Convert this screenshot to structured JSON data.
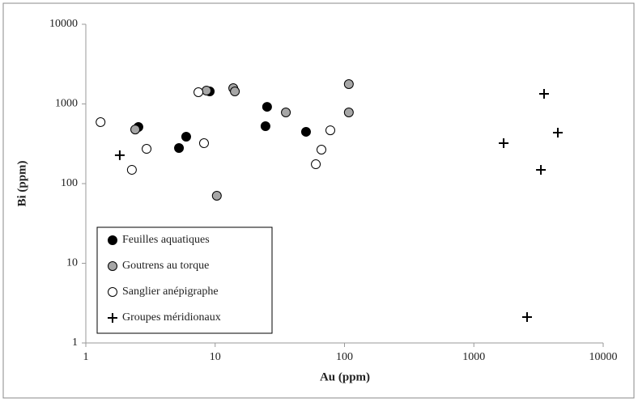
{
  "chart_data": {
    "type": "scatter",
    "xlabel": "Au (ppm)",
    "ylabel": "Bi (ppm)",
    "xscale": "log",
    "yscale": "log",
    "xlim": [
      1,
      10000
    ],
    "ylim": [
      1,
      10000
    ],
    "xticks": [
      1,
      10,
      100,
      1000,
      10000
    ],
    "yticks": [
      1,
      10,
      100,
      1000,
      10000
    ],
    "grid": false,
    "legend": "lower left",
    "series": [
      {
        "name": "Feuilles aquatiques",
        "marker": "circle",
        "color": "#000000",
        "x": [
          2.55,
          5.25,
          5.97,
          9.08,
          25.2,
          24.5,
          50.4
        ],
        "values": [
          513,
          280,
          388,
          1437,
          920,
          526,
          447
        ]
      },
      {
        "name": "Goutrens au torque",
        "marker": "circle",
        "color": "#a6a6a6",
        "x": [
          2.41,
          8.57,
          13.8,
          14.2,
          10.3,
          35.2,
          108,
          108
        ],
        "values": [
          478,
          1470,
          1578,
          1437,
          70.4,
          782,
          1773,
          782
        ]
      },
      {
        "name": "Sanglier anépigraphe",
        "marker": "circle",
        "color": "#ffffff",
        "x": [
          1.3,
          2.27,
          2.95,
          7.42,
          8.2,
          60,
          66.3,
          77.7
        ],
        "values": [
          591,
          149,
          273,
          1403,
          322,
          175,
          267,
          467
        ]
      },
      {
        "name": "Groupes méridionaux",
        "marker": "plus",
        "color": "#000000",
        "x": [
          1.83,
          1700,
          3490,
          3300,
          4460,
          2580
        ],
        "values": [
          227,
          322,
          1340,
          149,
          436,
          2.11
        ]
      }
    ]
  }
}
